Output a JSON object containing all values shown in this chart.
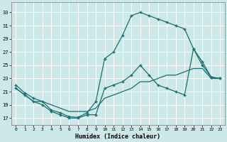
{
  "xlabel": "Humidex (Indice chaleur)",
  "background_color": "#cce8e8",
  "grid_color": "#b8d8d8",
  "line_color": "#1a6e6e",
  "xlim": [
    -0.5,
    23.5
  ],
  "ylim": [
    16.0,
    34.5
  ],
  "xticks": [
    0,
    1,
    2,
    3,
    4,
    5,
    6,
    7,
    8,
    9,
    10,
    11,
    12,
    13,
    14,
    15,
    16,
    17,
    18,
    19,
    20,
    21,
    22,
    23
  ],
  "yticks": [
    17,
    19,
    21,
    23,
    25,
    27,
    29,
    31,
    33
  ],
  "line1_x": [
    0,
    1,
    2,
    3,
    4,
    5,
    6,
    7,
    8,
    9,
    10,
    11,
    12,
    13,
    14,
    15,
    16,
    17,
    18,
    19,
    20,
    21,
    22,
    23
  ],
  "line1_y": [
    22.0,
    20.8,
    20.0,
    19.5,
    18.2,
    17.8,
    17.2,
    17.1,
    17.8,
    19.5,
    26.0,
    27.0,
    29.5,
    32.5,
    33.0,
    32.5,
    32.0,
    31.5,
    31.0,
    30.5,
    27.5,
    25.0,
    23.2,
    23.0
  ],
  "line2_x": [
    0,
    1,
    2,
    3,
    4,
    5,
    6,
    7,
    8,
    9,
    10,
    11,
    12,
    13,
    14,
    15,
    16,
    17,
    18,
    19,
    20,
    21,
    22,
    23
  ],
  "line2_y": [
    21.5,
    20.5,
    19.5,
    19.0,
    18.0,
    17.5,
    17.0,
    17.0,
    17.5,
    17.5,
    21.5,
    22.0,
    22.5,
    23.5,
    25.0,
    23.5,
    22.0,
    21.5,
    21.0,
    20.5,
    27.5,
    25.5,
    23.2,
    23.0
  ],
  "line3_x": [
    0,
    1,
    2,
    3,
    4,
    5,
    6,
    7,
    8,
    9,
    10,
    11,
    12,
    13,
    14,
    15,
    16,
    17,
    18,
    19,
    20,
    21,
    22,
    23
  ],
  "line3_y": [
    21.5,
    20.5,
    19.5,
    19.5,
    19.0,
    18.5,
    18.0,
    18.0,
    18.0,
    18.5,
    20.0,
    20.5,
    21.0,
    21.5,
    22.5,
    22.5,
    23.0,
    23.5,
    23.5,
    24.0,
    24.5,
    24.5,
    23.0,
    23.0
  ]
}
